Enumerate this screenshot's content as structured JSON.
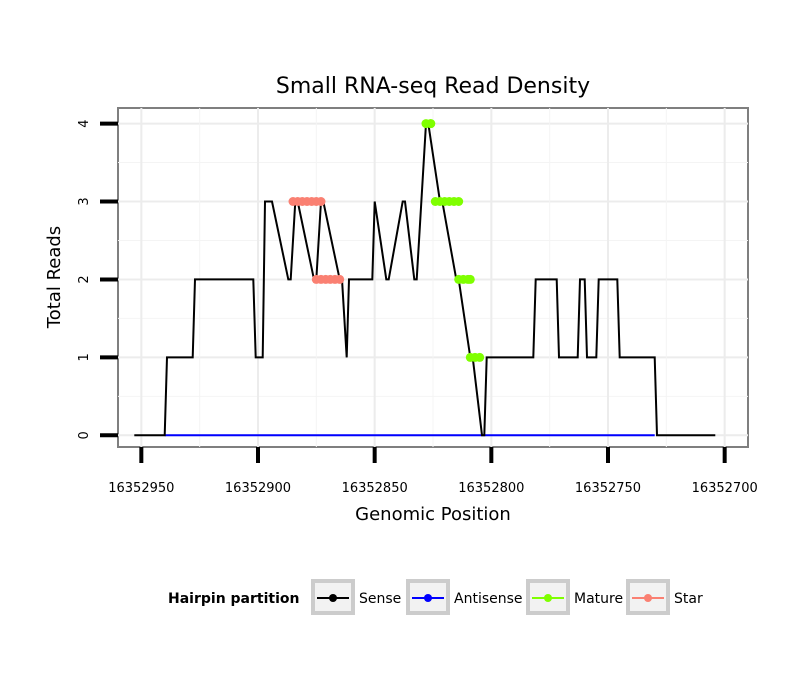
{
  "chart_data": {
    "type": "line",
    "title": "Small RNA-seq Read Density",
    "xlabel": "Genomic Position",
    "ylabel": "Total Reads",
    "x_reversed": true,
    "xlim": [
      16352960,
      16352690
    ],
    "ylim": [
      -0.15,
      4.2
    ],
    "x_ticks": [
      16352950,
      16352900,
      16352850,
      16352800,
      16352750,
      16352700
    ],
    "x_tick_labels": [
      "16352950",
      "16352900",
      "16352850",
      "16352800",
      "16352750",
      "16352700"
    ],
    "y_ticks": [
      0,
      1,
      2,
      3,
      4
    ],
    "y_tick_labels": [
      "0",
      "1",
      "2",
      "3",
      "4"
    ],
    "grid": true,
    "legend": {
      "title": "Hairpin partition",
      "position": "bottom",
      "items": [
        {
          "label": "Sense",
          "color": "#000000"
        },
        {
          "label": "Antisense",
          "color": "#0000ff"
        },
        {
          "label": "Mature",
          "color": "#7fff00"
        },
        {
          "label": "Star",
          "color": "#fa8072"
        }
      ]
    },
    "series": [
      {
        "name": "Sense",
        "color": "#000000",
        "x": [
          16352953,
          16352940,
          16352939,
          16352928,
          16352927,
          16352902,
          16352901,
          16352898,
          16352897,
          16352894,
          16352887,
          16352886,
          16352884,
          16352883,
          16352876,
          16352875,
          16352873,
          16352872,
          16352865,
          16352864,
          16352862,
          16352861,
          16352851,
          16352850,
          16352845,
          16352844,
          16352838,
          16352837,
          16352833,
          16352832,
          16352828,
          16352827,
          16352822,
          16352821,
          16352815,
          16352814,
          16352809,
          16352808,
          16352804,
          16352803,
          16352802,
          16352782,
          16352781,
          16352772,
          16352771,
          16352763,
          16352762,
          16352760,
          16352759,
          16352755,
          16352754,
          16352746,
          16352745,
          16352730,
          16352729,
          16352704
        ],
        "y": [
          0,
          0,
          1,
          1,
          2,
          2,
          1,
          1,
          3,
          3,
          2,
          2,
          3,
          3,
          2,
          2,
          3,
          3,
          2,
          2,
          1,
          2,
          2,
          3,
          2,
          2,
          3,
          3,
          2,
          2,
          4,
          4,
          3,
          3,
          2,
          2,
          1,
          1,
          0,
          0,
          1,
          1,
          2,
          2,
          1,
          1,
          2,
          2,
          1,
          1,
          2,
          2,
          1,
          1,
          0,
          0
        ]
      },
      {
        "name": "Antisense",
        "color": "#0000ff",
        "x": [
          16352940,
          16352730
        ],
        "y": [
          0,
          0
        ]
      },
      {
        "name": "Mature",
        "color": "#7fff00",
        "x": [
          16352828,
          16352826,
          16352826,
          16352824,
          16352822,
          16352820,
          16352818,
          16352816,
          16352814,
          16352814,
          16352812,
          16352810,
          16352809,
          16352809,
          16352807,
          16352805
        ],
        "y": [
          4,
          4,
          4,
          3,
          3,
          3,
          3,
          3,
          3,
          2,
          2,
          2,
          2,
          1,
          1,
          1
        ]
      },
      {
        "name": "Star",
        "color": "#fa8072",
        "x": [
          16352885,
          16352883,
          16352881,
          16352879,
          16352877,
          16352875,
          16352875,
          16352873,
          16352873,
          16352871,
          16352869,
          16352867,
          16352865
        ],
        "y": [
          3,
          3,
          3,
          3,
          3,
          3,
          2,
          2,
          3,
          2,
          2,
          2,
          2
        ]
      }
    ]
  }
}
